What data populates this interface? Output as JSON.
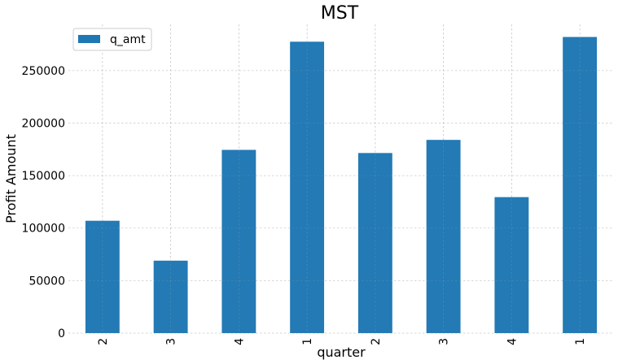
{
  "chart_data": {
    "type": "bar",
    "title": "MST",
    "xlabel": "quarter",
    "ylabel": "Profit Amount",
    "categories": [
      "2",
      "3",
      "4",
      "1",
      "2",
      "3",
      "4",
      "1"
    ],
    "series": [
      {
        "name": "q_amt",
        "color": "#1f77b4",
        "values": [
          107000,
          69000,
          174500,
          277500,
          171500,
          184000,
          129500,
          282000
        ]
      }
    ],
    "ylim": [
      0,
      294000
    ],
    "yticks": [
      0,
      50000,
      100000,
      150000,
      200000,
      250000
    ],
    "grid": true,
    "legend_position": "top-left"
  }
}
